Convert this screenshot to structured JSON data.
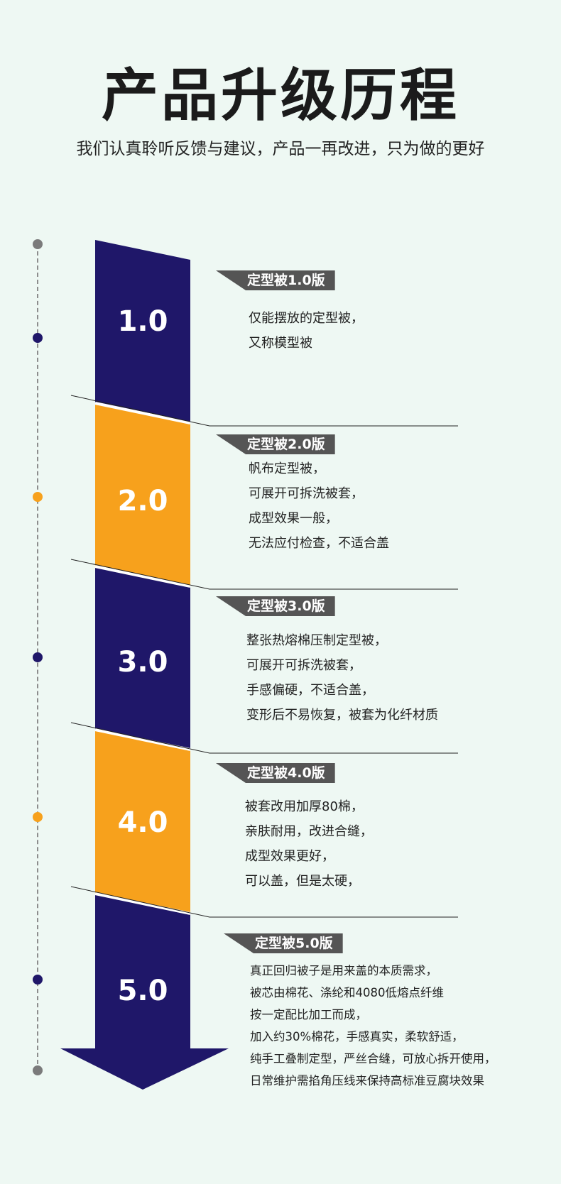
{
  "header": {
    "title": "产品升级历程",
    "subtitle": "我们认真聆听反馈与建议，产品一再改进，只为做的更好"
  },
  "colors": {
    "navy": "#1f1769",
    "orange": "#f7a11c",
    "label_bg": "#555555",
    "background": "#eef8f3"
  },
  "versions": [
    {
      "number": "1.0",
      "label": "定型被1.0版",
      "lines": [
        "仅能摆放的定型被，",
        "又称模型被"
      ]
    },
    {
      "number": "2.0",
      "label": "定型被2.0版",
      "lines": [
        "帆布定型被，",
        "可展开可拆洗被套，",
        "成型效果一般，",
        "无法应付检查，不适合盖"
      ]
    },
    {
      "number": "3.0",
      "label": "定型被3.0版",
      "lines": [
        "整张热熔棉压制定型被，",
        "可展开可拆洗被套，",
        "手感偏硬，不适合盖，",
        "变形后不易恢复，被套为化纤材质"
      ]
    },
    {
      "number": "4.0",
      "label": "定型被4.0版",
      "lines": [
        "被套改用加厚80棉，",
        "亲肤耐用，改进合缝，",
        "成型效果更好，",
        "可以盖，但是太硬，"
      ]
    },
    {
      "number": "5.0",
      "label": "定型被5.0版",
      "lines": [
        "真正回归被子是用来盖的本质需求，",
        "被芯由棉花、涤纶和4080低熔点纤维",
        "按一定配比加工而成，",
        "加入约30%棉花，手感真实，柔软舒适，",
        "纯手工叠制定型，严丝合缝，可放心拆开使用，",
        "日常维护需掐角压线来保持高标准豆腐块效果"
      ]
    }
  ]
}
